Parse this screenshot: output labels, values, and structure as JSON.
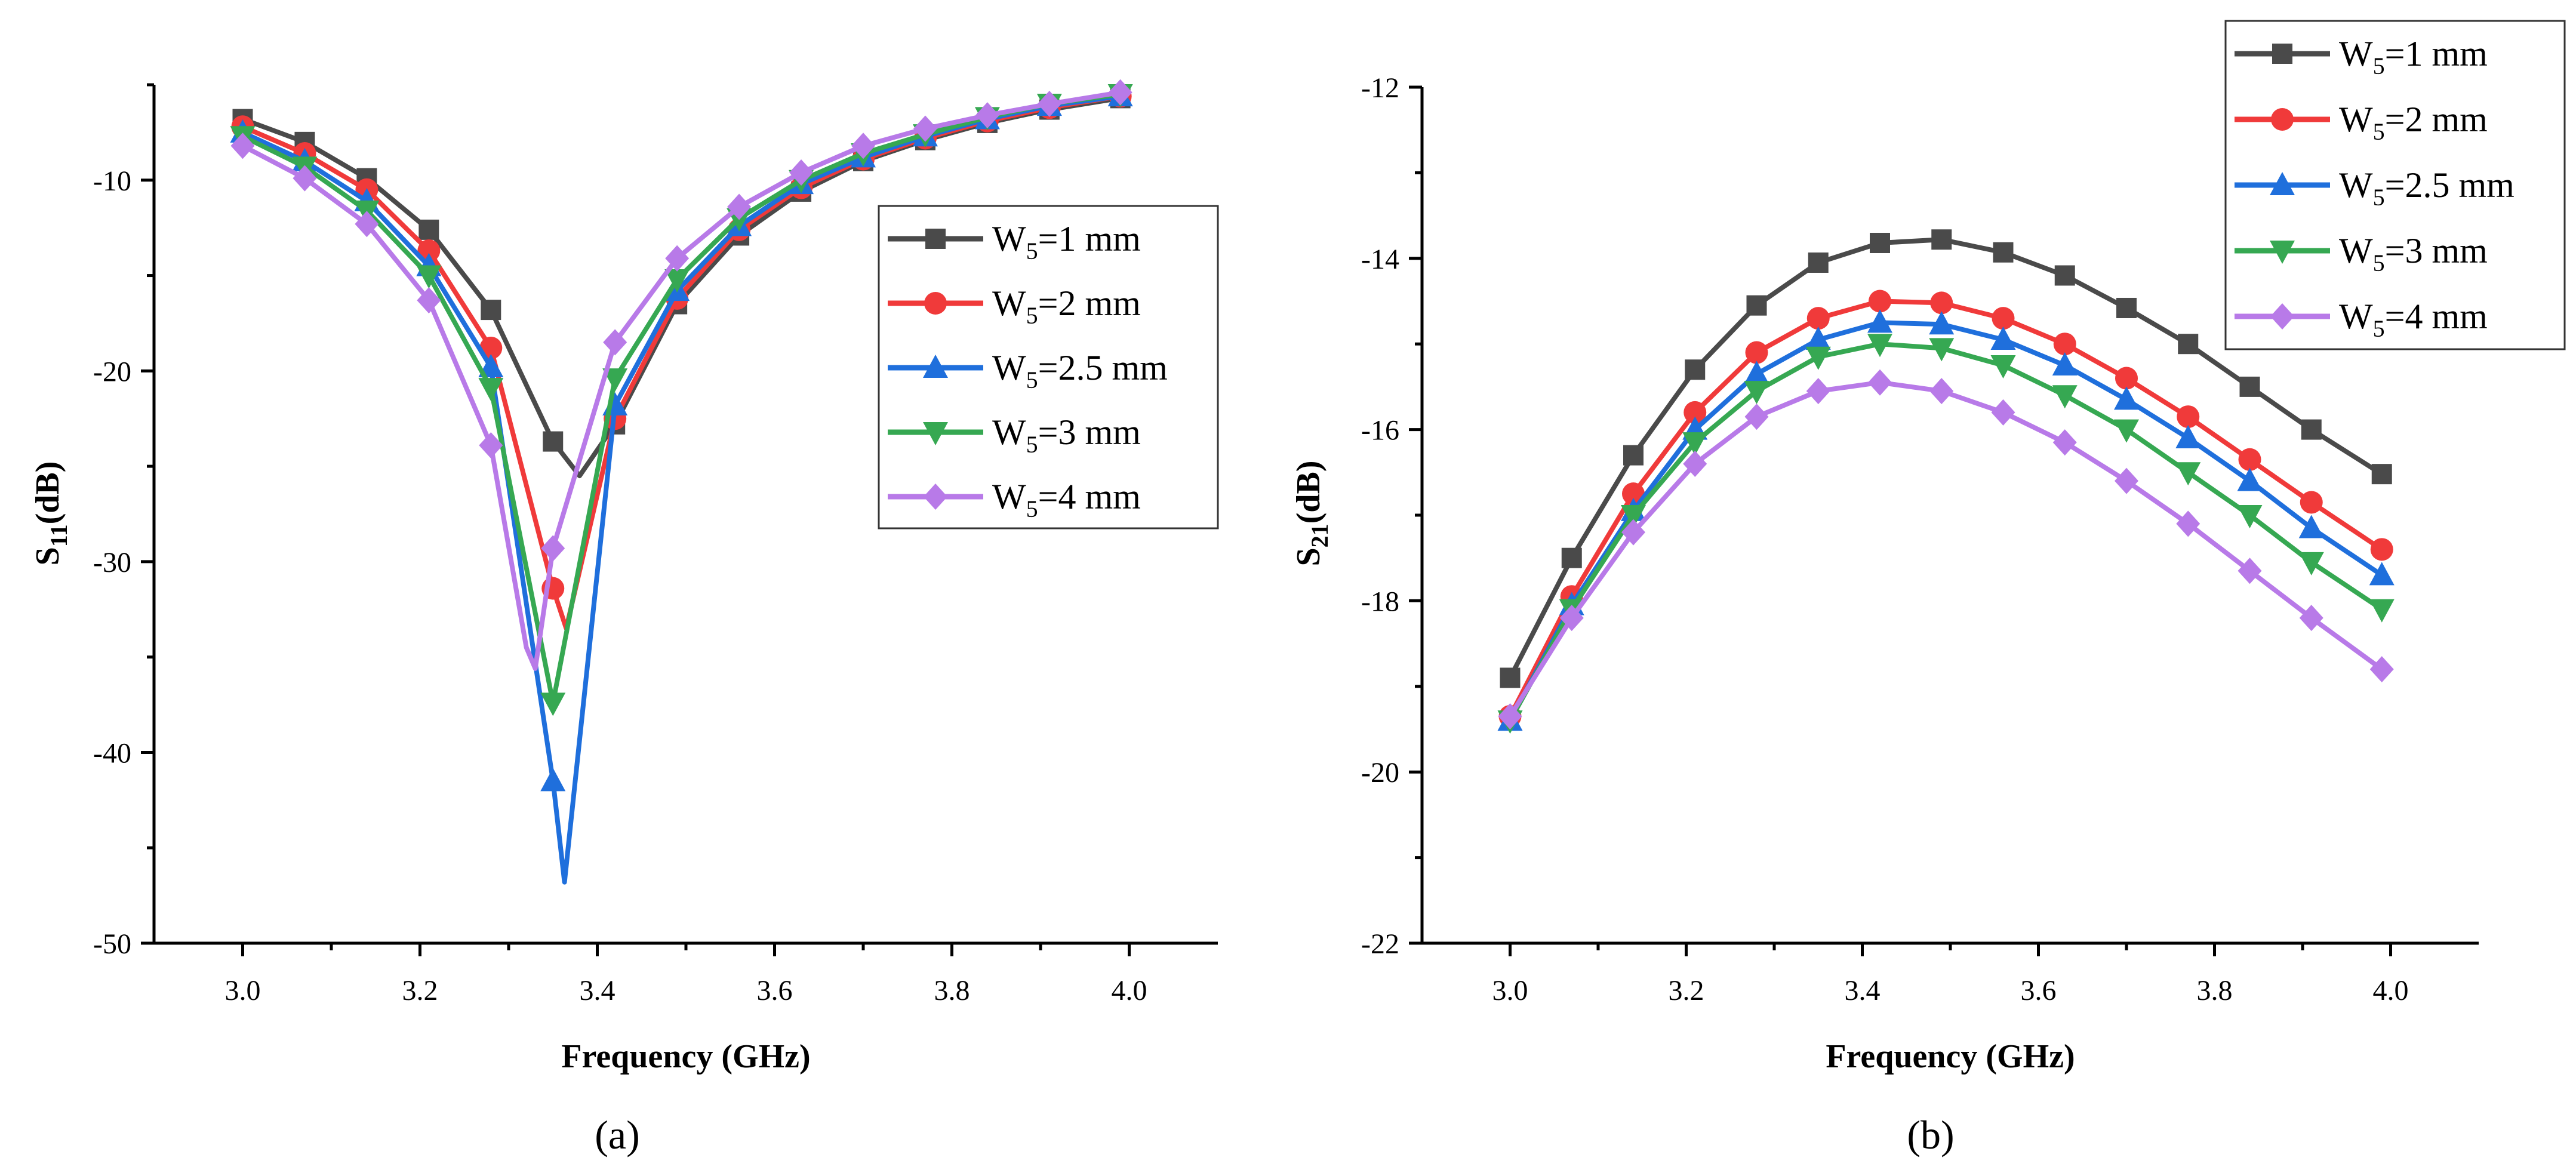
{
  "chart_data": [
    {
      "id": "a",
      "type": "line",
      "caption": "(a)",
      "xlabel": "Frequency (GHz)",
      "ylabel": {
        "main": "S",
        "sub": "11",
        "suffix": "(dB)"
      },
      "xlim": [
        2.9,
        4.1
      ],
      "ylim": [
        -50,
        -5
      ],
      "xticks": [
        3.0,
        3.2,
        3.4,
        3.6,
        3.8,
        4.0
      ],
      "xtick_labels": [
        "3.0",
        "3.2",
        "3.4",
        "3.6",
        "3.8",
        "4.0"
      ],
      "yticks": [
        -50,
        -40,
        -30,
        -20,
        -10
      ],
      "ytick_labels": [
        "-50",
        "-40",
        "-30",
        "-20",
        "-10"
      ],
      "legend_position": "center-right",
      "series": [
        {
          "name": "W5=1 mm",
          "label_main": "W",
          "label_sub": "5",
          "label_rest": "=1 mm",
          "color": "#4a4a4a",
          "marker": "square",
          "x": [
            3.0,
            3.07,
            3.14,
            3.21,
            3.28,
            3.35,
            3.38,
            3.42,
            3.49,
            3.56,
            3.63,
            3.7,
            3.77,
            3.84,
            3.91,
            3.99
          ],
          "y": [
            -6.8,
            -8.0,
            -9.9,
            -12.6,
            -16.8,
            -23.7,
            -25.5,
            -22.8,
            -16.5,
            -12.9,
            -10.6,
            -9.0,
            -7.9,
            -7.0,
            -6.3,
            -5.7
          ],
          "marker_x": [
            3.0,
            3.07,
            3.14,
            3.21,
            3.28,
            3.35,
            3.42,
            3.49,
            3.56,
            3.63,
            3.7,
            3.77,
            3.84,
            3.91,
            3.99
          ]
        },
        {
          "name": "W5=2 mm",
          "label_main": "W",
          "label_sub": "5",
          "label_rest": "=2 mm",
          "color": "#f03a3a",
          "marker": "circle",
          "x": [
            3.0,
            3.07,
            3.14,
            3.21,
            3.28,
            3.35,
            3.365,
            3.42,
            3.49,
            3.56,
            3.63,
            3.7,
            3.77,
            3.84,
            3.91,
            3.99
          ],
          "y": [
            -7.2,
            -8.6,
            -10.5,
            -13.7,
            -18.8,
            -31.4,
            -33.5,
            -22.5,
            -16.2,
            -12.6,
            -10.4,
            -8.9,
            -7.8,
            -6.9,
            -6.2,
            -5.6
          ],
          "marker_x": [
            3.0,
            3.07,
            3.14,
            3.21,
            3.28,
            3.35,
            3.42,
            3.49,
            3.56,
            3.63,
            3.7,
            3.77,
            3.84,
            3.91,
            3.99
          ]
        },
        {
          "name": "W5=2.5 mm",
          "label_main": "W",
          "label_sub": "5",
          "label_rest": "=2.5 mm",
          "color": "#1f6fdc",
          "marker": "triangle-up",
          "x": [
            3.0,
            3.07,
            3.14,
            3.21,
            3.28,
            3.35,
            3.363,
            3.42,
            3.49,
            3.56,
            3.63,
            3.7,
            3.77,
            3.84,
            3.91,
            3.99
          ],
          "y": [
            -7.5,
            -9.0,
            -11.1,
            -14.5,
            -19.8,
            -41.5,
            -46.8,
            -21.8,
            -15.8,
            -12.4,
            -10.2,
            -8.8,
            -7.7,
            -6.8,
            -6.1,
            -5.6
          ],
          "marker_x": [
            3.0,
            3.07,
            3.14,
            3.21,
            3.28,
            3.35,
            3.42,
            3.49,
            3.56,
            3.63,
            3.7,
            3.77,
            3.84,
            3.91,
            3.99
          ]
        },
        {
          "name": "W5=3 mm",
          "label_main": "W",
          "label_sub": "5",
          "label_rest": "=3 mm",
          "color": "#36a852",
          "marker": "triangle-down",
          "x": [
            3.0,
            3.07,
            3.14,
            3.21,
            3.28,
            3.35,
            3.42,
            3.49,
            3.56,
            3.63,
            3.7,
            3.77,
            3.84,
            3.91,
            3.99
          ],
          "y": [
            -7.7,
            -9.3,
            -11.6,
            -15.0,
            -20.9,
            -37.4,
            -20.4,
            -15.2,
            -12.0,
            -10.0,
            -8.6,
            -7.6,
            -6.7,
            -6.0,
            -5.5
          ],
          "marker_x": [
            3.0,
            3.07,
            3.14,
            3.21,
            3.28,
            3.35,
            3.42,
            3.49,
            3.56,
            3.63,
            3.7,
            3.77,
            3.84,
            3.91,
            3.99
          ]
        },
        {
          "name": "W5=4 mm",
          "label_main": "W",
          "label_sub": "5",
          "label_rest": "=4 mm",
          "color": "#b87ae8",
          "marker": "diamond",
          "x": [
            3.0,
            3.07,
            3.14,
            3.21,
            3.28,
            3.32,
            3.33,
            3.35,
            3.42,
            3.49,
            3.56,
            3.63,
            3.7,
            3.77,
            3.84,
            3.91,
            3.99
          ],
          "y": [
            -8.2,
            -9.9,
            -12.3,
            -16.3,
            -23.9,
            -34.5,
            -35.6,
            -29.3,
            -18.5,
            -14.1,
            -11.4,
            -9.6,
            -8.2,
            -7.3,
            -6.6,
            -6.0,
            -5.4
          ],
          "marker_x": [
            3.0,
            3.07,
            3.14,
            3.21,
            3.28,
            3.35,
            3.42,
            3.49,
            3.56,
            3.63,
            3.7,
            3.77,
            3.84,
            3.91,
            3.99
          ]
        }
      ]
    },
    {
      "id": "b",
      "type": "line",
      "caption": "(b)",
      "xlabel": "Frequency (GHz)",
      "ylabel": {
        "main": "S",
        "sub": "21",
        "suffix": "(dB)"
      },
      "xlim": [
        2.9,
        4.1
      ],
      "ylim": [
        -22,
        -12
      ],
      "xticks": [
        3.0,
        3.2,
        3.4,
        3.6,
        3.8,
        4.0
      ],
      "xtick_labels": [
        "3.0",
        "3.2",
        "3.4",
        "3.6",
        "3.8",
        "4.0"
      ],
      "yticks": [
        -22,
        -20,
        -18,
        -16,
        -14,
        -12
      ],
      "ytick_labels": [
        "-22",
        "-20",
        "-18",
        "-16",
        "-14",
        "-12"
      ],
      "legend_position": "top-right",
      "series": [
        {
          "name": "W5=1 mm",
          "label_main": "W",
          "label_sub": "5",
          "label_rest": "=1 mm",
          "color": "#4a4a4a",
          "marker": "square",
          "x": [
            3.0,
            3.07,
            3.14,
            3.21,
            3.28,
            3.35,
            3.42,
            3.49,
            3.56,
            3.63,
            3.7,
            3.77,
            3.84,
            3.91,
            3.99
          ],
          "y": [
            -18.9,
            -17.5,
            -16.3,
            -15.3,
            -14.55,
            -14.05,
            -13.82,
            -13.78,
            -13.93,
            -14.2,
            -14.58,
            -15.0,
            -15.5,
            -16.0,
            -16.52
          ],
          "marker_x": [
            3.0,
            3.07,
            3.14,
            3.21,
            3.28,
            3.35,
            3.42,
            3.49,
            3.56,
            3.63,
            3.7,
            3.77,
            3.84,
            3.91,
            3.99
          ]
        },
        {
          "name": "W5=2 mm",
          "label_main": "W",
          "label_sub": "5",
          "label_rest": "=2 mm",
          "color": "#f03a3a",
          "marker": "circle",
          "x": [
            3.0,
            3.07,
            3.14,
            3.21,
            3.28,
            3.35,
            3.42,
            3.49,
            3.56,
            3.63,
            3.7,
            3.77,
            3.84,
            3.91,
            3.99
          ],
          "y": [
            -19.35,
            -17.95,
            -16.75,
            -15.8,
            -15.1,
            -14.7,
            -14.5,
            -14.52,
            -14.7,
            -15.0,
            -15.4,
            -15.85,
            -16.35,
            -16.85,
            -17.4
          ],
          "marker_x": [
            3.0,
            3.07,
            3.14,
            3.21,
            3.28,
            3.35,
            3.42,
            3.49,
            3.56,
            3.63,
            3.7,
            3.77,
            3.84,
            3.91,
            3.99
          ]
        },
        {
          "name": "W5=2.5 mm",
          "label_main": "W",
          "label_sub": "5",
          "label_rest": "=2.5 mm",
          "color": "#1f6fdc",
          "marker": "triangle-up",
          "x": [
            3.0,
            3.07,
            3.14,
            3.21,
            3.28,
            3.35,
            3.42,
            3.49,
            3.56,
            3.63,
            3.7,
            3.77,
            3.84,
            3.91,
            3.99
          ],
          "y": [
            -19.4,
            -18.05,
            -16.95,
            -16.0,
            -15.35,
            -14.95,
            -14.75,
            -14.77,
            -14.95,
            -15.25,
            -15.65,
            -16.1,
            -16.6,
            -17.15,
            -17.7
          ],
          "marker_x": [
            3.0,
            3.07,
            3.14,
            3.21,
            3.28,
            3.35,
            3.42,
            3.49,
            3.56,
            3.63,
            3.7,
            3.77,
            3.84,
            3.91,
            3.99
          ]
        },
        {
          "name": "W5=3 mm",
          "label_main": "W",
          "label_sub": "5",
          "label_rest": "=3 mm",
          "color": "#36a852",
          "marker": "triangle-down",
          "x": [
            3.0,
            3.07,
            3.14,
            3.21,
            3.28,
            3.35,
            3.42,
            3.49,
            3.56,
            3.63,
            3.7,
            3.77,
            3.84,
            3.91,
            3.99
          ],
          "y": [
            -19.4,
            -18.1,
            -17.0,
            -16.15,
            -15.55,
            -15.15,
            -15.0,
            -15.05,
            -15.25,
            -15.6,
            -16.0,
            -16.5,
            -17.0,
            -17.55,
            -18.1
          ],
          "marker_x": [
            3.0,
            3.07,
            3.14,
            3.21,
            3.28,
            3.35,
            3.42,
            3.49,
            3.56,
            3.63,
            3.7,
            3.77,
            3.84,
            3.91,
            3.99
          ]
        },
        {
          "name": "W5=4 mm",
          "label_main": "W",
          "label_sub": "5",
          "label_rest": "=4 mm",
          "color": "#b87ae8",
          "marker": "diamond",
          "x": [
            3.0,
            3.07,
            3.14,
            3.21,
            3.28,
            3.35,
            3.42,
            3.49,
            3.56,
            3.63,
            3.7,
            3.77,
            3.84,
            3.91,
            3.99
          ],
          "y": [
            -19.35,
            -18.2,
            -17.2,
            -16.4,
            -15.85,
            -15.55,
            -15.45,
            -15.55,
            -15.8,
            -16.15,
            -16.6,
            -17.1,
            -17.65,
            -18.2,
            -18.8
          ],
          "marker_x": [
            3.0,
            3.07,
            3.14,
            3.21,
            3.28,
            3.35,
            3.42,
            3.49,
            3.56,
            3.63,
            3.7,
            3.77,
            3.84,
            3.91,
            3.99
          ]
        }
      ]
    }
  ]
}
